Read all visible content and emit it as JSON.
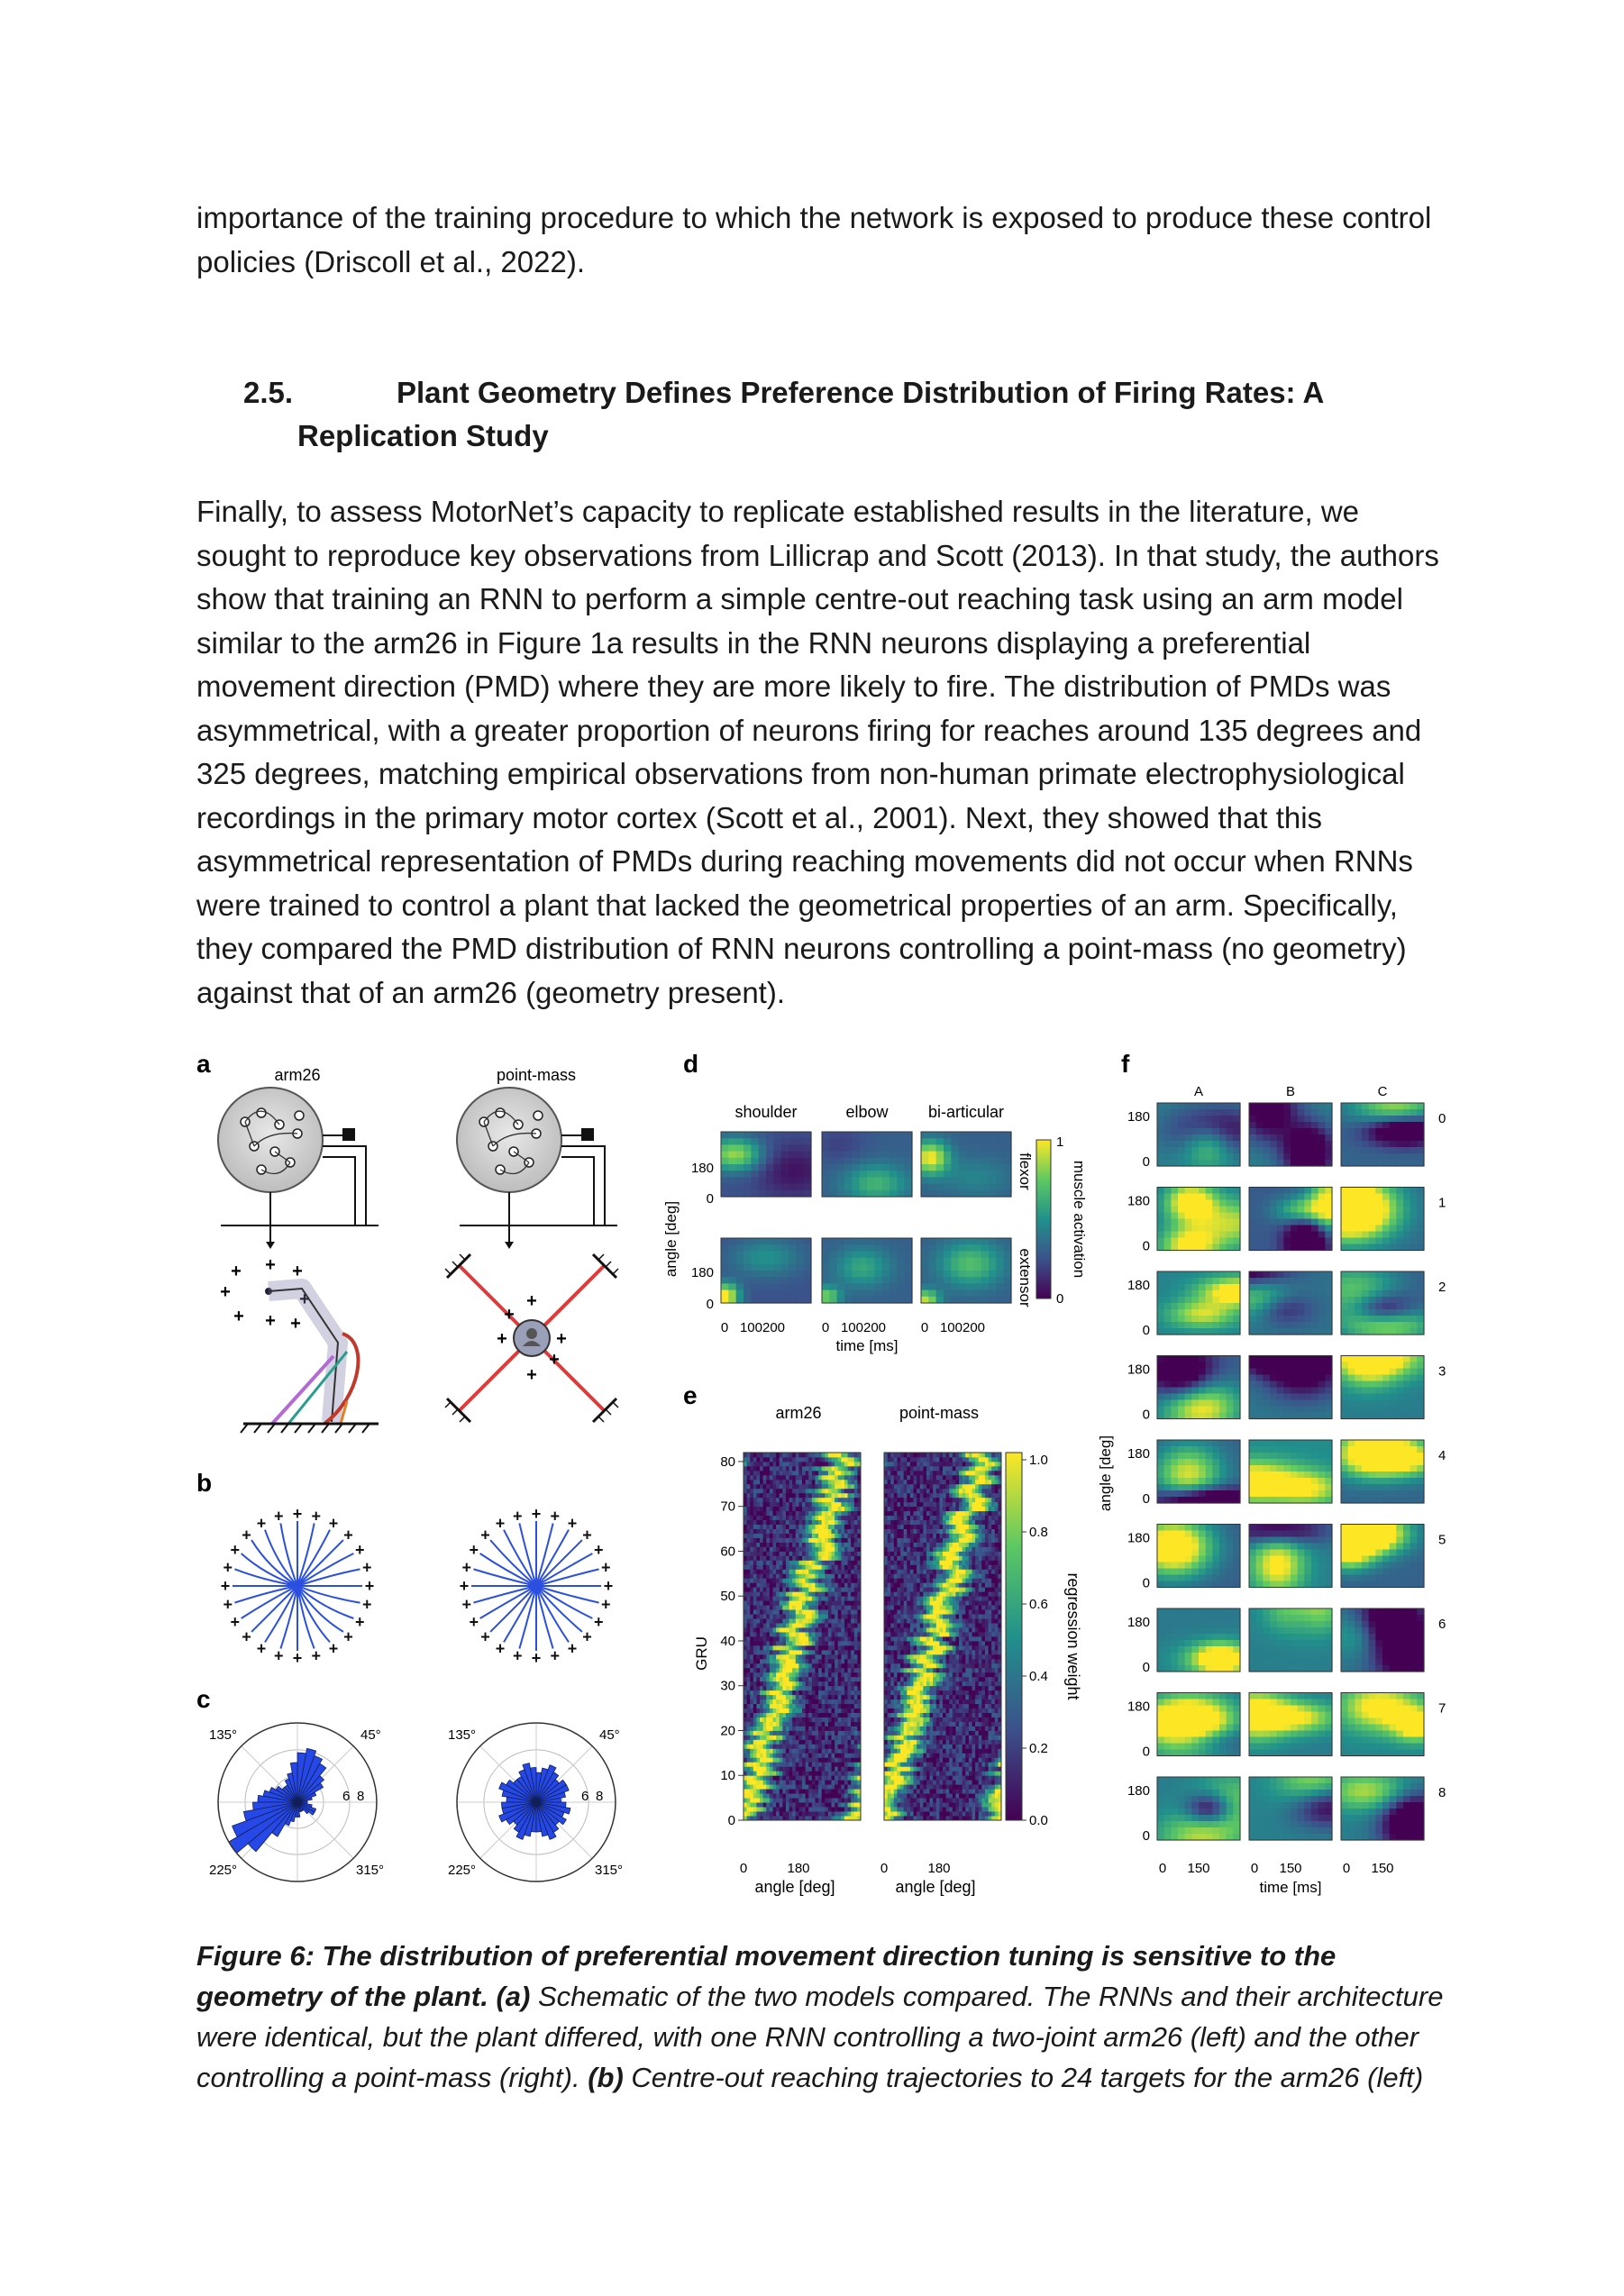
{
  "intro_paragraph": "importance of the training procedure to which the network is exposed to produce these control policies (Driscoll et al., 2022).",
  "section": {
    "number": "2.5.",
    "title_line1": "Plant Geometry Defines Preference Distribution of Firing Rates: A",
    "title_line2": "Replication Study"
  },
  "main_paragraph": "Finally, to assess MotorNet’s capacity to replicate established results in the literature, we sought to reproduce key observations from Lillicrap and Scott (2013). In that study, the authors show that training an RNN to perform a simple centre-out reaching task using an arm model similar to the arm26 in Figure 1a results in the RNN neurons displaying a preferential movement direction (PMD) where they are more likely to fire. The distribution of PMDs was asymmetrical, with a greater proportion of neurons firing for reaches around 135 degrees and 325 degrees, matching empirical observations from non-human primate electrophysiological recordings in the primary motor cortex (Scott et al., 2001). Next, they showed that this asymmetrical representation of PMDs during reaching movements did not occur when RNNs were trained to control a plant that lacked the geometrical properties of an arm. Specifically, they compared the PMD distribution of RNN neurons controlling a point-mass (no geometry) against that of an arm26 (geometry present).",
  "figure": {
    "panel_labels": {
      "a": "a",
      "b": "b",
      "c": "c",
      "d": "d",
      "e": "e",
      "f": "f"
    },
    "panel_a": {
      "left_title": "arm26",
      "right_title": "point-mass"
    },
    "panel_c": {
      "angle_labels": [
        "135°",
        "45°",
        "225°",
        "315°"
      ],
      "radial_labels": [
        "6",
        "8"
      ],
      "arm26_hist": [
        1,
        1.5,
        2,
        3,
        3.5,
        4.5,
        5,
        5.5,
        5,
        4,
        3,
        2.5,
        2,
        2,
        2.5,
        3,
        3.5,
        4,
        4.5,
        5.5,
        7,
        8,
        6.5,
        4,
        2.5,
        2,
        1.5,
        1.5,
        1,
        1,
        1,
        1.5,
        2,
        2,
        1.5,
        1
      ],
      "pointmass_hist": [
        2.5,
        3,
        3.5,
        3.5,
        3,
        3.5,
        4,
        3.5,
        3,
        3.5,
        4,
        3.5,
        3,
        3,
        3.5,
        4,
        3.5,
        3,
        3.5,
        3.5,
        4,
        3.5,
        3,
        3.5,
        4,
        3.5,
        3,
        3,
        3.5,
        4,
        3.5,
        3,
        3.5,
        3,
        3.5,
        3
      ]
    },
    "panel_d": {
      "column_titles": [
        "shoulder",
        "elbow",
        "bi-articular"
      ],
      "row_labels": [
        "flexor",
        "extensor"
      ],
      "ylabel": "angle [deg]",
      "ytick": "180",
      "ytick0": "0",
      "xticks": [
        "0",
        "100200",
        "0",
        "100200",
        "0",
        "100200"
      ],
      "xlabel": "time [ms]",
      "colorbar_label": "muscle activation",
      "colorbar_ticks": [
        "1",
        "0"
      ]
    },
    "panel_e": {
      "titles": [
        "arm26",
        "point-mass"
      ],
      "ylabel": "GRU",
      "yticks": [
        "80",
        "70",
        "60",
        "50",
        "40",
        "30",
        "20",
        "10",
        "0"
      ],
      "xticks": [
        "0",
        "180"
      ],
      "xlabel": "angle [deg]",
      "colorbar_label": "regression weight",
      "colorbar_ticks": [
        "1.0",
        "0.8",
        "0.6",
        "0.4",
        "0.2",
        "0.0"
      ]
    },
    "panel_f": {
      "column_titles": [
        "A",
        "B",
        "C"
      ],
      "row_labels": [
        "0",
        "1",
        "2",
        "3",
        "4",
        "5",
        "6",
        "7",
        "8"
      ],
      "ylabel": "angle [deg]",
      "ytick": "180",
      "ytick0": "0",
      "xticks": [
        "0",
        "150",
        "0",
        "150",
        "0",
        "150"
      ],
      "xlabel": "time [ms]"
    }
  },
  "caption": {
    "label": "Figure 6: The distribution of preferential movement direction tuning is sensitive to the geometry of the plant.",
    "a_label": "(a)",
    "a_text": "Schematic of the two models compared. The RNNs and their architecture were identical, but the plant differed, with one RNN controlling a two-joint arm26 (left) and the other controlling a point-mass (right).",
    "b_label": "(b)",
    "b_text": "Centre-out reaching trajectories to 24 targets for the arm26 (left)"
  }
}
